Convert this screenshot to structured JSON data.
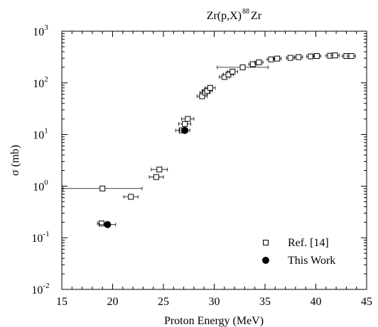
{
  "chart_data": {
    "type": "scatter",
    "title": "Zr(p,X)",
    "title_superscript": "88",
    "title_suffix": "Zr",
    "xlabel": "Proton Energy (MeV)",
    "ylabel": "σ (mb)",
    "xlim": [
      15,
      45
    ],
    "ylim": [
      0.01,
      1000
    ],
    "yscale": "log",
    "x_ticks": [
      15,
      20,
      25,
      30,
      35,
      40,
      45
    ],
    "x_tick_labels": [
      "15",
      "20",
      "25",
      "30",
      "35",
      "40",
      "45"
    ],
    "y_ticks": [
      {
        "value": 0.01,
        "base": "10",
        "exp": "-2"
      },
      {
        "value": 0.1,
        "base": "10",
        "exp": "-1"
      },
      {
        "value": 1,
        "base": "10",
        "exp": "0"
      },
      {
        "value": 10,
        "base": "10",
        "exp": "1"
      },
      {
        "value": 100,
        "base": "10",
        "exp": "2"
      },
      {
        "value": 1000,
        "base": "10",
        "exp": "3"
      }
    ],
    "grid": false,
    "legend_position": "bottom-right",
    "series": [
      {
        "name": "Ref. [14]",
        "marker": "open-square",
        "color": "#000000",
        "points": [
          {
            "x": 18.9,
            "y": 0.19,
            "xerr": 0.4
          },
          {
            "x": 19.0,
            "y": 0.9,
            "xerr": 3.9
          },
          {
            "x": 21.8,
            "y": 0.62,
            "xerr": 0.7
          },
          {
            "x": 24.3,
            "y": 1.5,
            "xerr": 0.7
          },
          {
            "x": 24.6,
            "y": 2.1,
            "xerr": 0.8
          },
          {
            "x": 26.8,
            "y": 12,
            "xerr": 0.6
          },
          {
            "x": 27.1,
            "y": 16,
            "xerr": 0.6
          },
          {
            "x": 27.4,
            "y": 20,
            "xerr": 0.6
          },
          {
            "x": 28.8,
            "y": 55,
            "xerr": 0.5
          },
          {
            "x": 29.1,
            "y": 65,
            "xerr": 0.5
          },
          {
            "x": 29.3,
            "y": 70,
            "xerr": 0.5
          },
          {
            "x": 29.6,
            "y": 80,
            "xerr": 0.5
          },
          {
            "x": 31.0,
            "y": 130,
            "xerr": 0.5
          },
          {
            "x": 31.4,
            "y": 145,
            "xerr": 0.5
          },
          {
            "x": 31.8,
            "y": 165,
            "xerr": 0.5
          },
          {
            "x": 32.8,
            "y": 200,
            "xerr": 2.5
          },
          {
            "x": 33.8,
            "y": 230,
            "xerr": 0.4
          },
          {
            "x": 34.4,
            "y": 250,
            "xerr": 0.4
          },
          {
            "x": 35.6,
            "y": 285,
            "xerr": 0.4
          },
          {
            "x": 36.2,
            "y": 295,
            "xerr": 0.4
          },
          {
            "x": 37.5,
            "y": 305,
            "xerr": 0.4
          },
          {
            "x": 38.3,
            "y": 315,
            "xerr": 0.4
          },
          {
            "x": 39.5,
            "y": 325,
            "xerr": 0.4
          },
          {
            "x": 40.1,
            "y": 330,
            "xerr": 0.4
          },
          {
            "x": 41.4,
            "y": 335,
            "xerr": 0.4
          },
          {
            "x": 41.9,
            "y": 340,
            "xerr": 0.4
          },
          {
            "x": 43.0,
            "y": 330,
            "xerr": 0.4
          },
          {
            "x": 43.5,
            "y": 330,
            "xerr": 0.4
          }
        ]
      },
      {
        "name": "This Work",
        "marker": "filled-circle",
        "color": "#000000",
        "points": [
          {
            "x": 19.5,
            "y": 0.18,
            "xerr": 0.8
          },
          {
            "x": 27.1,
            "y": 12,
            "xerr": 0.5
          }
        ]
      }
    ]
  }
}
